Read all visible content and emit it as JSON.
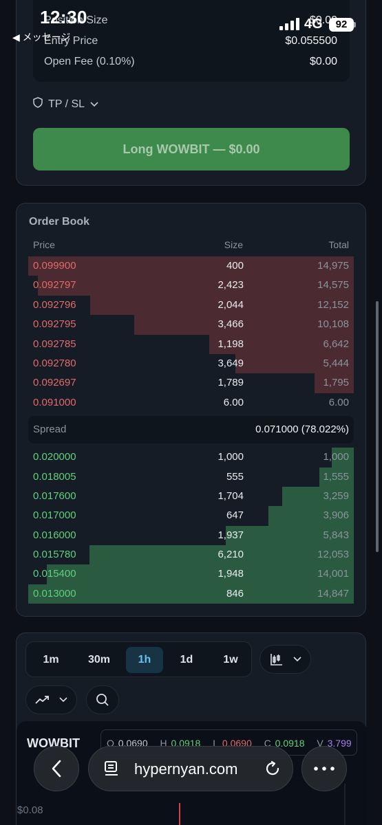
{
  "status_bar": {
    "time": "12:30",
    "back_label": "◀ メッセージ",
    "network": "4G",
    "battery": "92"
  },
  "order_form": {
    "summary": [
      {
        "label": "Position Size",
        "value": "$0.00"
      },
      {
        "label": "Entry Price",
        "value": "$0.055500"
      },
      {
        "label": "Open Fee (0.10%)",
        "value": "$0.00"
      }
    ],
    "tpsl_label": "TP / SL",
    "submit_label": "Long WOWBIT — $0.00",
    "submit_color": "#3d8a4c"
  },
  "order_book": {
    "title": "Order Book",
    "headers": {
      "price": "Price",
      "size": "Size",
      "total": "Total"
    },
    "asks": [
      {
        "price": "0.099900",
        "size": "400",
        "total": "14,975",
        "depth": 1.0
      },
      {
        "price": "0.092797",
        "size": "2,423",
        "total": "14,575",
        "depth": 0.97
      },
      {
        "price": "0.092796",
        "size": "2,044",
        "total": "12,152",
        "depth": 0.81
      },
      {
        "price": "0.092795",
        "size": "3,466",
        "total": "10,108",
        "depth": 0.675
      },
      {
        "price": "0.092785",
        "size": "1,198",
        "total": "6,642",
        "depth": 0.443
      },
      {
        "price": "0.092780",
        "size": "3,649",
        "total": "5,444",
        "depth": 0.363
      },
      {
        "price": "0.092697",
        "size": "1,789",
        "total": "1,795",
        "depth": 0.12
      },
      {
        "price": "0.091000",
        "size": "6.00",
        "total": "6.00",
        "depth": 0.0
      }
    ],
    "spread_label": "Spread",
    "spread_value": "0.071000 (78.022%)",
    "bids": [
      {
        "price": "0.020000",
        "size": "1,000",
        "total": "1,000",
        "depth": 0.067
      },
      {
        "price": "0.018005",
        "size": "555",
        "total": "1,555",
        "depth": 0.105
      },
      {
        "price": "0.017600",
        "size": "1,704",
        "total": "3,259",
        "depth": 0.22
      },
      {
        "price": "0.017000",
        "size": "647",
        "total": "3,906",
        "depth": 0.263
      },
      {
        "price": "0.016000",
        "size": "1,937",
        "total": "5,843",
        "depth": 0.394
      },
      {
        "price": "0.015780",
        "size": "6,210",
        "total": "12,053",
        "depth": 0.812
      },
      {
        "price": "0.015400",
        "size": "1,948",
        "total": "14,001",
        "depth": 0.943
      },
      {
        "price": "0.013000",
        "size": "846",
        "total": "14,847",
        "depth": 1.0
      }
    ],
    "ask_color": "#e36a6a",
    "bid_color": "#5ed17c"
  },
  "chart": {
    "timeframes": [
      "1m",
      "30m",
      "1h",
      "1d",
      "1w"
    ],
    "active_timeframe": "1h",
    "symbol": "WOWBIT",
    "ohlc": {
      "o_label": "O",
      "o": "0.0690",
      "h_label": "H",
      "h": "0.0918",
      "l_label": "L",
      "l": "0.0690",
      "c_label": "C",
      "c": "0.0918",
      "v_label": "V",
      "v": "3.799"
    },
    "price_tick": "$0.08"
  },
  "browser": {
    "url": "hypernyan.com"
  }
}
